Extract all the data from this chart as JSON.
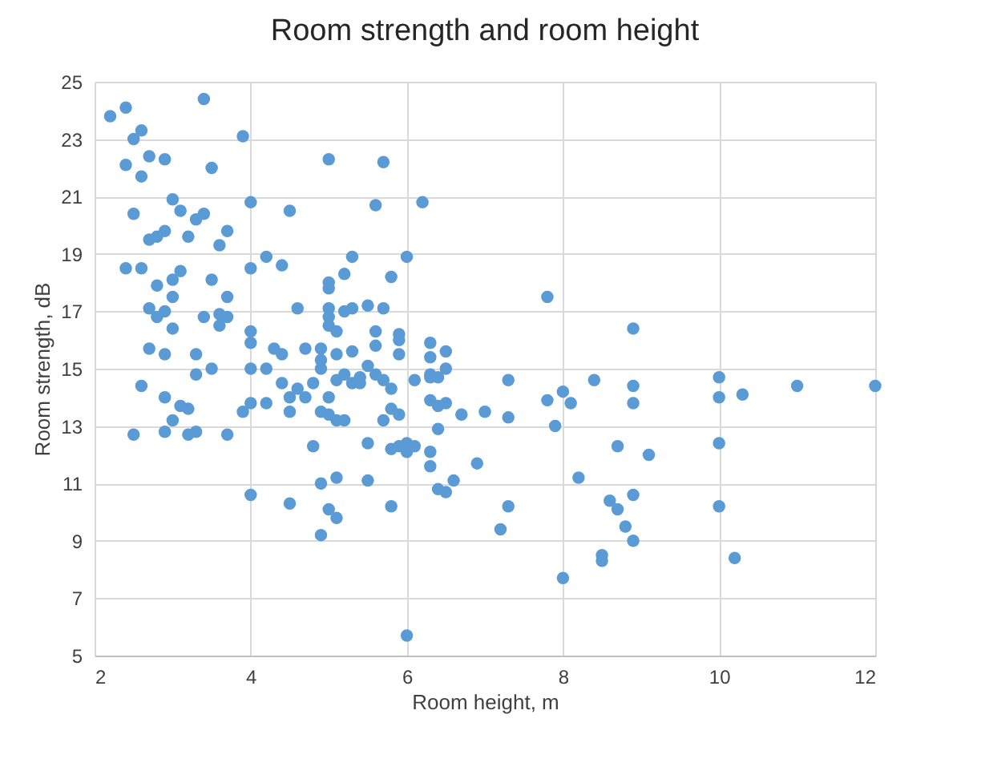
{
  "chart_data": {
    "type": "scatter",
    "title": "Room strength  and room height",
    "xlabel": "Room height, m",
    "ylabel": "Room strength, dB",
    "xlim": [
      2,
      12
    ],
    "xticks": [
      2,
      4,
      6,
      8,
      10,
      12
    ],
    "ylim": [
      5,
      25
    ],
    "yticks": [
      5,
      7,
      9,
      11,
      13,
      15,
      17,
      19,
      21,
      23,
      25
    ],
    "grid": true,
    "marker": "circle",
    "series": [
      {
        "color": "#5b9bd5",
        "x": [
          2.2,
          2.4,
          2.5,
          2.6,
          2.4,
          2.7,
          2.9,
          3.4,
          3.5,
          3.9,
          2.5,
          2.6,
          2.8,
          2.9,
          3.0,
          3.1,
          2.7,
          3.3,
          3.4,
          3.2,
          3.6,
          3.7,
          4.0,
          4.5,
          4.2,
          4.4,
          2.4,
          2.6,
          2.8,
          3.0,
          3.1,
          3.0,
          3.5,
          3.7,
          4.0,
          2.7,
          2.8,
          2.9,
          3.0,
          3.4,
          3.6,
          3.7,
          3.6,
          4.0,
          4.0,
          4.0,
          2.7,
          2.9,
          3.3,
          3.3,
          2.6,
          3.5,
          4.2,
          4.3,
          4.4,
          4.5,
          4.4,
          4.5,
          4.7,
          3.9,
          4.0,
          4.2,
          2.9,
          3.0,
          3.1,
          3.2,
          2.5,
          2.9,
          3.2,
          3.3,
          3.7,
          4.0,
          4.5,
          4.8,
          4.9,
          4.9,
          5.0,
          5.1,
          5.1,
          5.0,
          5.2,
          4.9,
          5.0,
          5.0,
          5.0,
          5.0,
          5.0,
          5.0,
          5.0,
          4.9,
          4.9,
          4.9,
          5.1,
          5.1,
          5.2,
          5.3,
          5.4,
          5.5,
          5.5,
          5.6,
          5.6,
          5.7,
          5.7,
          5.6,
          5.8,
          5.9,
          5.9,
          5.9,
          6.0,
          6.0,
          5.8,
          5.9,
          5.7,
          5.8,
          5.9,
          6.0,
          6.1,
          6.0,
          5.8,
          5.5,
          5.5,
          5.3,
          5.2,
          5.3,
          5.2,
          5.4,
          5.6,
          5.7,
          5.8,
          6.1,
          6.2,
          6.3,
          6.3,
          6.3,
          6.3,
          6.4,
          6.5,
          6.5,
          6.3,
          6.4,
          6.5,
          6.4,
          6.3,
          6.3,
          6.4,
          6.5,
          6.6,
          6.7,
          6.9,
          7.0,
          7.3,
          7.3,
          7.2,
          7.3,
          7.8,
          7.8,
          8.0,
          8.1,
          7.9,
          8.0,
          8.2,
          8.4,
          8.5,
          8.5,
          8.6,
          8.7,
          8.7,
          8.8,
          8.9,
          8.9,
          8.9,
          8.9,
          8.9,
          9.1,
          10.0,
          10.0,
          10.3,
          11.0,
          12.0,
          10.0,
          10.0,
          10.2,
          4.8,
          4.6,
          4.7,
          4.6,
          5.1,
          5.1,
          5.3
        ],
        "values": [
          23.8,
          24.1,
          23.0,
          23.3,
          22.1,
          22.4,
          22.3,
          24.4,
          22.0,
          23.1,
          20.4,
          21.7,
          19.6,
          19.8,
          20.9,
          20.5,
          19.5,
          20.2,
          20.4,
          19.6,
          19.3,
          19.8,
          20.8,
          20.5,
          18.9,
          18.6,
          18.5,
          18.5,
          17.9,
          18.1,
          18.4,
          17.5,
          18.1,
          17.5,
          18.5,
          17.1,
          16.8,
          17.0,
          16.4,
          16.8,
          16.9,
          16.8,
          16.5,
          16.3,
          15.9,
          15.0,
          15.7,
          15.5,
          15.5,
          14.8,
          14.4,
          15.0,
          15.0,
          15.7,
          15.5,
          13.5,
          14.5,
          14.0,
          14.0,
          13.5,
          13.8,
          13.8,
          14.0,
          13.2,
          13.7,
          13.6,
          12.7,
          12.8,
          12.7,
          12.8,
          12.7,
          10.6,
          10.3,
          12.3,
          11.0,
          9.2,
          10.1,
          9.8,
          11.2,
          13.4,
          13.2,
          13.5,
          14.0,
          16.5,
          16.8,
          17.1,
          17.8,
          18.0,
          22.3,
          15.7,
          15.3,
          15.0,
          16.3,
          15.5,
          17.0,
          17.1,
          14.7,
          15.1,
          17.2,
          15.8,
          16.3,
          17.1,
          22.2,
          20.7,
          18.2,
          16.2,
          16.0,
          15.5,
          18.9,
          12.4,
          13.6,
          13.4,
          13.2,
          12.2,
          12.3,
          12.1,
          12.3,
          5.7,
          10.2,
          12.4,
          11.1,
          18.9,
          18.3,
          14.5,
          14.8,
          14.5,
          14.8,
          14.6,
          14.3,
          14.6,
          20.8,
          15.9,
          15.4,
          14.7,
          14.8,
          14.7,
          15.6,
          15.0,
          13.9,
          13.7,
          13.8,
          12.9,
          12.1,
          11.6,
          10.8,
          10.7,
          11.1,
          13.4,
          11.7,
          13.5,
          13.3,
          14.6,
          9.4,
          10.2,
          17.5,
          13.9,
          14.2,
          13.8,
          13.0,
          7.7,
          11.2,
          14.6,
          8.5,
          8.3,
          10.4,
          10.1,
          12.3,
          9.5,
          9.0,
          10.6,
          14.4,
          13.8,
          16.4,
          12.0,
          14.7,
          14.0,
          14.1,
          14.4,
          14.4,
          12.4,
          10.2,
          8.4,
          14.5,
          14.3,
          15.7,
          17.1,
          13.2,
          14.6,
          15.6
        ]
      }
    ]
  }
}
